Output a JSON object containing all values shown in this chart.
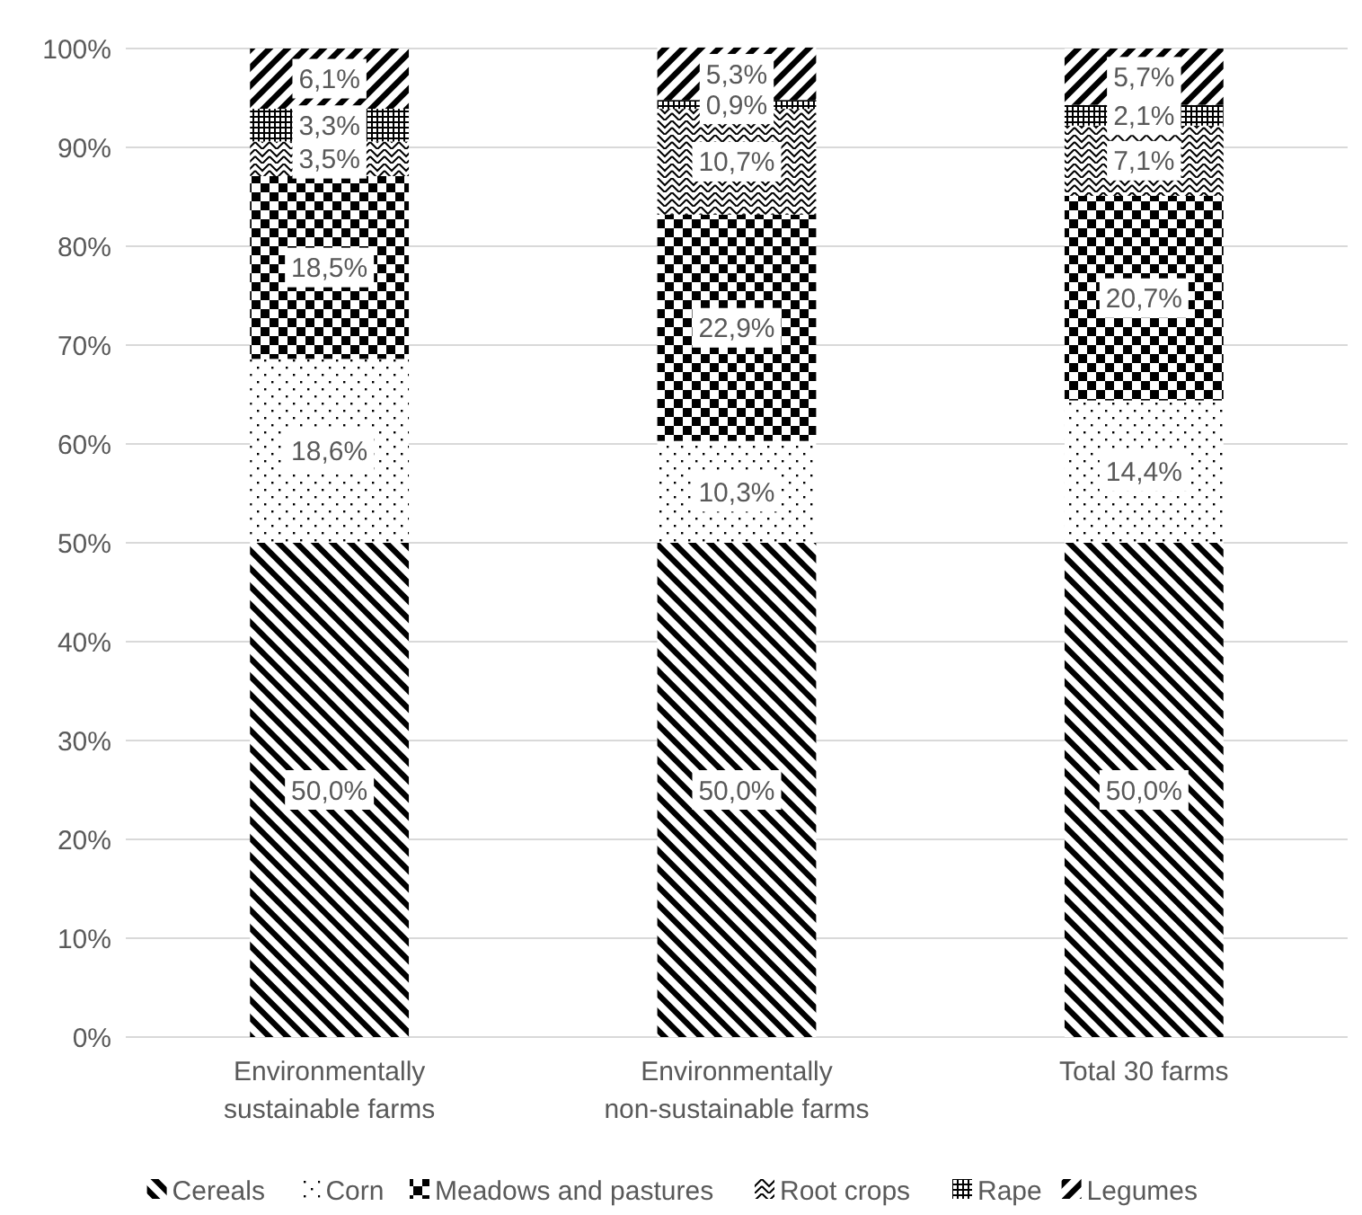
{
  "chart_data": {
    "type": "bar",
    "stacked": true,
    "categories": [
      "Environmentally sustainable farms",
      "Environmentally non-sustainable farms",
      "Total 30 farms"
    ],
    "series": [
      {
        "name": "Cereals",
        "color": "#000000",
        "values": [
          50.0,
          50.0,
          50.0
        ],
        "value_labels": [
          "50,0%",
          "50,0%",
          "50,0%"
        ]
      },
      {
        "name": "Corn",
        "color": "#000000",
        "values": [
          18.6,
          10.3,
          14.4
        ],
        "value_labels": [
          "18,6%",
          "10,3%",
          "14,4%"
        ]
      },
      {
        "name": "Meadows and pastures",
        "color": "#000000",
        "values": [
          18.5,
          22.9,
          20.7
        ],
        "value_labels": [
          "18,5%",
          "22,9%",
          "20,7%"
        ]
      },
      {
        "name": "Root crops",
        "color": "#000000",
        "values": [
          3.5,
          10.7,
          7.1
        ],
        "value_labels": [
          "3,5%",
          "10,7%",
          "7,1%"
        ]
      },
      {
        "name": "Rape",
        "color": "#000000",
        "values": [
          3.3,
          0.9,
          2.1
        ],
        "value_labels": [
          "3,3%",
          "0,9%",
          "2,1%"
        ]
      },
      {
        "name": "Legumes",
        "color": "#000000",
        "values": [
          6.1,
          5.3,
          5.7
        ],
        "value_labels": [
          "6,1%",
          "5,3%",
          "5,7%"
        ]
      }
    ],
    "ylim": [
      0,
      100
    ],
    "yticks": [
      {
        "value": 0,
        "label": "0%"
      },
      {
        "value": 10,
        "label": "10%"
      },
      {
        "value": 20,
        "label": "20%"
      },
      {
        "value": 30,
        "label": "30%"
      },
      {
        "value": 40,
        "label": "40%"
      },
      {
        "value": 50,
        "label": "50%"
      },
      {
        "value": 60,
        "label": "60%"
      },
      {
        "value": 70,
        "label": "70%"
      },
      {
        "value": 80,
        "label": "80%"
      },
      {
        "value": 90,
        "label": "90%"
      },
      {
        "value": 100,
        "label": "100%"
      }
    ],
    "grid": "y",
    "legend": "bottom"
  }
}
